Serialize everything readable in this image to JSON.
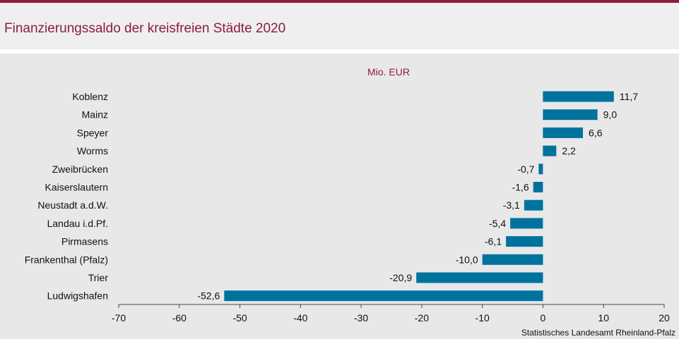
{
  "header": {
    "title": "Finanzierungssaldo der kreisfreien Städte 2020"
  },
  "source": "Statistisches Landesamt Rheinland-Pfalz",
  "colors": {
    "accent": "#8c1d3a",
    "bar": "#00729e",
    "background": "#e8e8e8"
  },
  "chart_data": {
    "type": "bar",
    "orientation": "horizontal",
    "unit_label": "Mio. EUR",
    "categories": [
      "Koblenz",
      "Mainz",
      "Speyer",
      "Worms",
      "Zweibrücken",
      "Kaiserslautern",
      "Neustadt a.d.W.",
      "Landau i.d.Pf.",
      "Pirmasens",
      "Frankenthal (Pfalz)",
      "Trier",
      "Ludwigshafen"
    ],
    "values": [
      11.7,
      9.0,
      6.6,
      2.2,
      -0.7,
      -1.6,
      -3.1,
      -5.4,
      -6.1,
      -10.0,
      -20.9,
      -52.6
    ],
    "value_labels": [
      "11,7",
      "9,0",
      "6,6",
      "2,2",
      "-0,7",
      "-1,6",
      "-3,1",
      "-5,4",
      "-6,1",
      "-10,0",
      "-20,9",
      "-52,6"
    ],
    "xlim": [
      -70,
      20
    ],
    "xticks": [
      -70,
      -60,
      -50,
      -40,
      -30,
      -20,
      -10,
      0,
      10,
      20
    ],
    "grid": false,
    "legend": false
  }
}
